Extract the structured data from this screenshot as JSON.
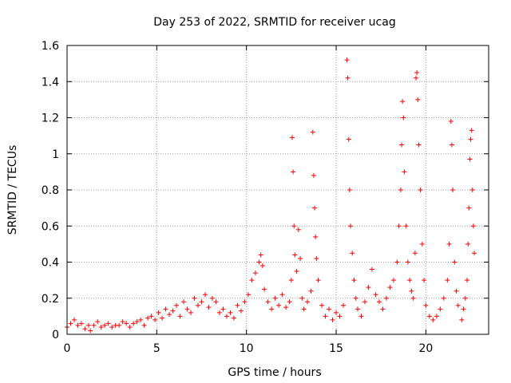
{
  "chart_data": {
    "type": "scatter",
    "title": "Day 253 of 2022, SRMTID for receiver ucag",
    "xlabel": "GPS time / hours",
    "ylabel": "SRMTID / TECUs",
    "xlim": [
      0,
      23.5
    ],
    "ylim": [
      0,
      1.6
    ],
    "grid": true,
    "marker": "plus",
    "color": "#ff0000",
    "xticks": [
      0,
      5,
      10,
      15,
      20
    ],
    "xtick_labels": [
      "0",
      "5",
      "10",
      "15",
      "20"
    ],
    "yticks": [
      0,
      0.2,
      0.4,
      0.6,
      0.8,
      1.0,
      1.2,
      1.4,
      1.6
    ],
    "ytick_labels": [
      "0",
      "0.2",
      "0.4",
      "0.6",
      "0.8",
      "1",
      "1.2",
      "1.4",
      "1.6"
    ],
    "series": [
      {
        "name": "SRMTID",
        "x": [
          0.0,
          0.2,
          0.4,
          0.6,
          0.8,
          1.0,
          1.2,
          1.3,
          1.5,
          1.7,
          1.9,
          2.1,
          2.3,
          2.5,
          2.7,
          2.9,
          3.1,
          3.3,
          3.5,
          3.7,
          3.9,
          4.1,
          4.3,
          4.5,
          4.7,
          4.9,
          5.1,
          5.3,
          5.5,
          5.7,
          5.9,
          6.1,
          6.3,
          6.5,
          6.7,
          6.9,
          7.1,
          7.3,
          7.5,
          7.7,
          7.9,
          8.1,
          8.3,
          8.5,
          8.7,
          8.9,
          9.1,
          9.3,
          9.5,
          9.7,
          9.9,
          10.1,
          10.3,
          10.5,
          10.7,
          10.8,
          10.9,
          11.0,
          11.2,
          11.4,
          11.6,
          11.8,
          12.0,
          12.2,
          12.4,
          12.5,
          12.55,
          12.6,
          12.65,
          12.7,
          12.8,
          12.9,
          13.0,
          13.1,
          13.2,
          13.4,
          13.6,
          13.7,
          13.75,
          13.8,
          13.85,
          13.9,
          14.0,
          14.2,
          14.4,
          14.6,
          14.8,
          15.0,
          15.2,
          15.4,
          15.6,
          15.65,
          15.7,
          15.75,
          15.8,
          15.9,
          16.0,
          16.1,
          16.2,
          16.4,
          16.6,
          16.8,
          17.0,
          17.2,
          17.4,
          17.6,
          17.8,
          18.0,
          18.2,
          18.4,
          18.5,
          18.6,
          18.65,
          18.7,
          18.75,
          18.8,
          18.9,
          19.0,
          19.1,
          19.2,
          19.3,
          19.4,
          19.45,
          19.5,
          19.55,
          19.6,
          19.7,
          19.8,
          19.9,
          20.0,
          20.2,
          20.4,
          20.6,
          20.8,
          21.0,
          21.2,
          21.3,
          21.4,
          21.45,
          21.5,
          21.6,
          21.7,
          21.8,
          22.0,
          22.1,
          22.2,
          22.3,
          22.35,
          22.4,
          22.45,
          22.5,
          22.55,
          22.6,
          22.65,
          22.7
        ],
        "y": [
          0.04,
          0.06,
          0.08,
          0.05,
          0.06,
          0.03,
          0.05,
          0.02,
          0.05,
          0.07,
          0.04,
          0.05,
          0.06,
          0.04,
          0.05,
          0.05,
          0.07,
          0.06,
          0.04,
          0.06,
          0.07,
          0.08,
          0.05,
          0.09,
          0.1,
          0.08,
          0.12,
          0.09,
          0.14,
          0.11,
          0.13,
          0.16,
          0.1,
          0.18,
          0.14,
          0.12,
          0.2,
          0.16,
          0.18,
          0.22,
          0.15,
          0.2,
          0.18,
          0.12,
          0.14,
          0.1,
          0.12,
          0.09,
          0.16,
          0.13,
          0.18,
          0.22,
          0.3,
          0.34,
          0.4,
          0.44,
          0.38,
          0.25,
          0.18,
          0.14,
          0.2,
          0.16,
          0.22,
          0.15,
          0.18,
          0.3,
          1.09,
          0.9,
          0.6,
          0.44,
          0.35,
          0.58,
          0.42,
          0.2,
          0.14,
          0.18,
          0.24,
          1.12,
          0.88,
          0.7,
          0.54,
          0.42,
          0.3,
          0.16,
          0.1,
          0.14,
          0.08,
          0.12,
          0.1,
          0.16,
          1.52,
          1.42,
          1.08,
          0.8,
          0.6,
          0.45,
          0.3,
          0.2,
          0.14,
          0.1,
          0.18,
          0.26,
          0.36,
          0.22,
          0.18,
          0.14,
          0.2,
          0.26,
          0.3,
          0.4,
          0.6,
          0.8,
          1.05,
          1.29,
          1.2,
          0.9,
          0.6,
          0.4,
          0.3,
          0.24,
          0.2,
          0.45,
          1.42,
          1.45,
          1.3,
          1.05,
          0.8,
          0.5,
          0.3,
          0.16,
          0.1,
          0.08,
          0.1,
          0.14,
          0.2,
          0.3,
          0.5,
          1.18,
          1.05,
          0.8,
          0.4,
          0.24,
          0.16,
          0.08,
          0.14,
          0.2,
          0.3,
          0.5,
          0.7,
          0.97,
          1.08,
          1.13,
          0.8,
          0.6,
          0.45
        ]
      }
    ]
  }
}
